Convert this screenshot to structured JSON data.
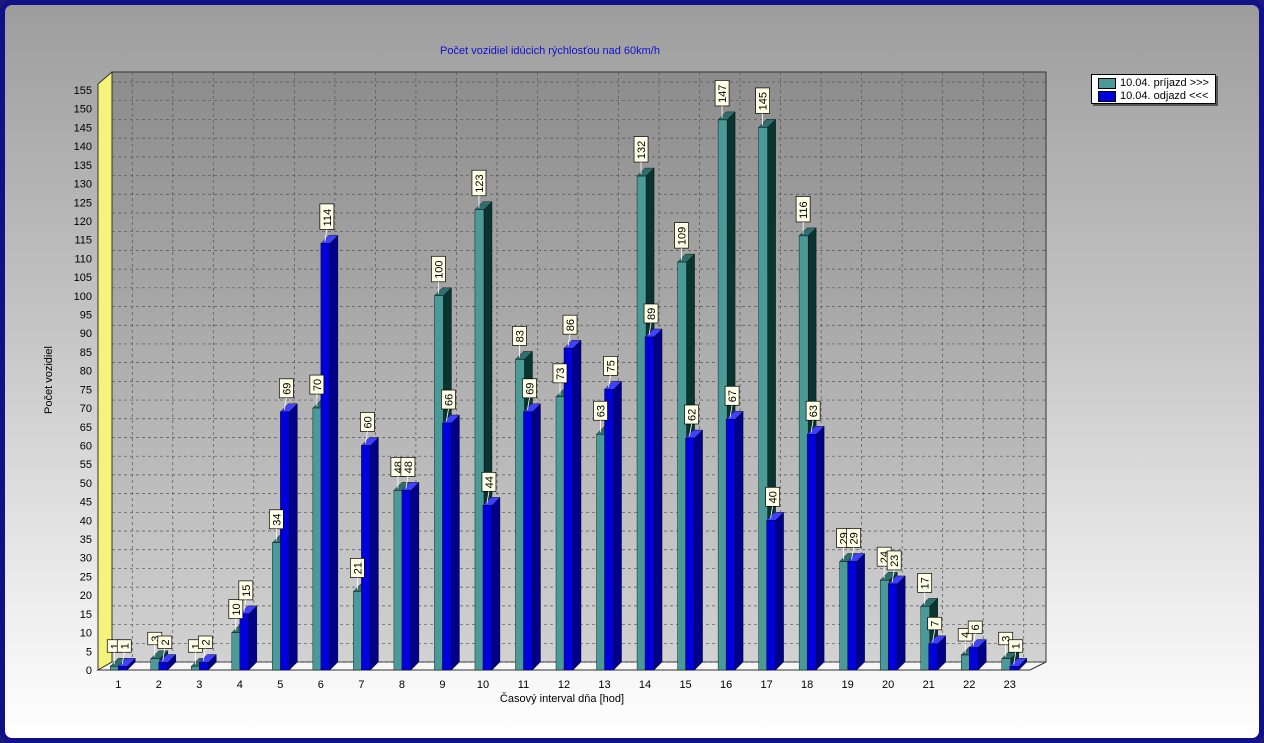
{
  "chart_data": {
    "type": "bar",
    "title": "Počet vozidiel idúcich rýchlosťou nad 60km/h",
    "xlabel": "Časový interval dňa [hod]",
    "ylabel": "Počet vozidiel",
    "ylim": [
      0,
      155
    ],
    "ytick_step": 5,
    "grid": true,
    "legend_position": "top-right",
    "categories": [
      "1",
      "2",
      "3",
      "4",
      "5",
      "6",
      "7",
      "8",
      "9",
      "10",
      "11",
      "12",
      "13",
      "14",
      "15",
      "16",
      "17",
      "18",
      "19",
      "20",
      "21",
      "22",
      "23"
    ],
    "series": [
      {
        "name": "10.04. príjazd >>>",
        "values": [
          1,
          3,
          1,
          10,
          34,
          70,
          21,
          48,
          100,
          123,
          83,
          73,
          63,
          132,
          109,
          147,
          145,
          116,
          29,
          24,
          17,
          4,
          3
        ],
        "color": "#4a9a98"
      },
      {
        "name": "10.04. odjazd <<<",
        "values": [
          1,
          2,
          2,
          15,
          69,
          114,
          60,
          48,
          66,
          44,
          69,
          86,
          75,
          89,
          62,
          67,
          40,
          63,
          29,
          23,
          7,
          6,
          1
        ],
        "color": "#0000dd"
      }
    ]
  }
}
